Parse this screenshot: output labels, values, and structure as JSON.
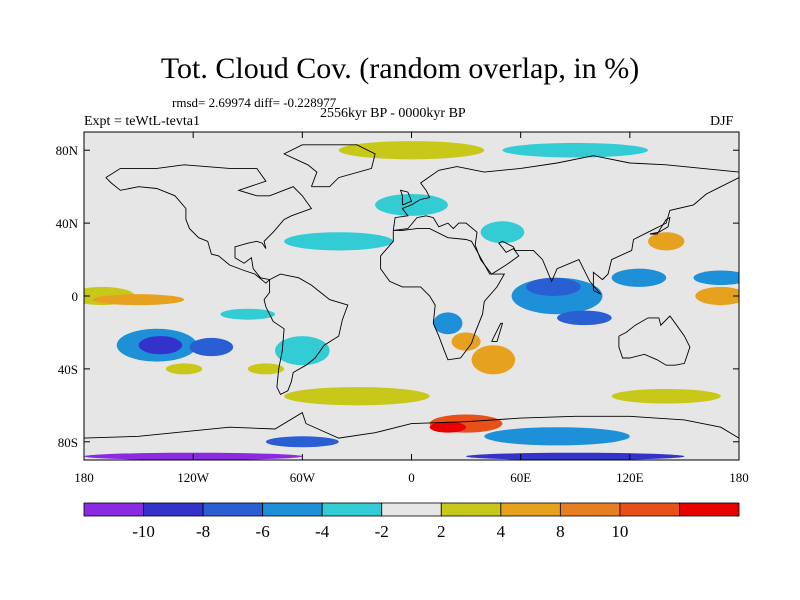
{
  "title": "Tot. Cloud Cov. (random overlap, in %)",
  "stats_line": "rmsd= 2.69974  diff= -0.228977",
  "period": "2556kyr BP - 0000kyr BP",
  "experiment": "Expt = teWtL-tevta1",
  "season": "DJF",
  "map": {
    "projection": "cylindrical-equidistant",
    "lon_range": [
      -180,
      180
    ],
    "lat_range": [
      -90,
      90
    ],
    "x_ticks": [
      {
        "lon": -180,
        "label": "180"
      },
      {
        "lon": -120,
        "label": "120W"
      },
      {
        "lon": -60,
        "label": "60W"
      },
      {
        "lon": 0,
        "label": "0"
      },
      {
        "lon": 60,
        "label": "60E"
      },
      {
        "lon": 120,
        "label": "120E"
      },
      {
        "lon": 180,
        "label": "180"
      }
    ],
    "y_ticks": [
      {
        "lat": 80,
        "label": "80N"
      },
      {
        "lat": 40,
        "label": "40N"
      },
      {
        "lat": 0,
        "label": "0"
      },
      {
        "lat": -40,
        "label": "40S"
      },
      {
        "lat": -80,
        "label": "80S"
      }
    ],
    "background_color": "#e6e6e6",
    "anomaly_patches": [
      {
        "lon": -170,
        "lat": 0,
        "rlon": 18,
        "rlat": 5,
        "bin": 6
      },
      {
        "lon": -150,
        "lat": -2,
        "rlon": 25,
        "rlat": 3,
        "bin": 7
      },
      {
        "lon": 170,
        "lat": 0,
        "rlon": 14,
        "rlat": 5,
        "bin": 7
      },
      {
        "lon": -140,
        "lat": -27,
        "rlon": 22,
        "rlat": 9,
        "bin": 3
      },
      {
        "lon": -138,
        "lat": -27,
        "rlon": 12,
        "rlat": 5,
        "bin": 1
      },
      {
        "lon": -110,
        "lat": -28,
        "rlon": 12,
        "rlat": 5,
        "bin": 2
      },
      {
        "lon": -60,
        "lat": -30,
        "rlon": 15,
        "rlat": 8,
        "bin": 4
      },
      {
        "lon": -90,
        "lat": -10,
        "rlon": 15,
        "rlat": 3,
        "bin": 4
      },
      {
        "lon": -38,
        "lat": -20,
        "rlon": 8,
        "rlat": 4,
        "bin": 5
      },
      {
        "lon": -125,
        "lat": -40,
        "rlon": 10,
        "rlat": 3,
        "bin": 6
      },
      {
        "lon": -80,
        "lat": -40,
        "rlon": 10,
        "rlat": 3,
        "bin": 6
      },
      {
        "lon": -160,
        "lat": 20,
        "rlon": 15,
        "rlat": 4,
        "bin": 5
      },
      {
        "lon": -40,
        "lat": 30,
        "rlon": 30,
        "rlat": 5,
        "bin": 4
      },
      {
        "lon": 0,
        "lat": 50,
        "rlon": 20,
        "rlat": 6,
        "bin": 4
      },
      {
        "lon": 80,
        "lat": 0,
        "rlon": 25,
        "rlat": 10,
        "bin": 3
      },
      {
        "lon": 78,
        "lat": 5,
        "rlon": 15,
        "rlat": 5,
        "bin": 2
      },
      {
        "lon": 95,
        "lat": -12,
        "rlon": 15,
        "rlat": 4,
        "bin": 2
      },
      {
        "lon": 125,
        "lat": 10,
        "rlon": 15,
        "rlat": 5,
        "bin": 3
      },
      {
        "lon": 170,
        "lat": 10,
        "rlon": 15,
        "rlat": 4,
        "bin": 3
      },
      {
        "lon": 45,
        "lat": -35,
        "rlon": 12,
        "rlat": 8,
        "bin": 7
      },
      {
        "lon": 30,
        "lat": -25,
        "rlon": 8,
        "rlat": 5,
        "bin": 7
      },
      {
        "lon": 20,
        "lat": -15,
        "rlon": 8,
        "rlat": 6,
        "bin": 3
      },
      {
        "lon": 50,
        "lat": 35,
        "rlon": 12,
        "rlat": 6,
        "bin": 4
      },
      {
        "lon": 60,
        "lat": 60,
        "rlon": 20,
        "rlat": 5,
        "bin": 5
      },
      {
        "lon": 0,
        "lat": 80,
        "rlon": 40,
        "rlat": 5,
        "bin": 6
      },
      {
        "lon": -60,
        "lat": 80,
        "rlon": 20,
        "rlat": 5,
        "bin": 5
      },
      {
        "lon": 90,
        "lat": 80,
        "rlon": 40,
        "rlat": 4,
        "bin": 4
      },
      {
        "lon": 120,
        "lat": 40,
        "rlon": 20,
        "rlat": 6,
        "bin": 5
      },
      {
        "lon": 140,
        "lat": 30,
        "rlon": 10,
        "rlat": 5,
        "bin": 7
      },
      {
        "lon": -120,
        "lat": 55,
        "rlon": 25,
        "rlat": 4,
        "bin": 5
      },
      {
        "lon": -30,
        "lat": -55,
        "rlon": 40,
        "rlat": 5,
        "bin": 6
      },
      {
        "lon": 140,
        "lat": -55,
        "rlon": 30,
        "rlat": 4,
        "bin": 6
      },
      {
        "lon": -140,
        "lat": -60,
        "rlon": 25,
        "rlat": 3,
        "bin": 5
      },
      {
        "lon": 30,
        "lat": -70,
        "rlon": 20,
        "rlat": 5,
        "bin": 9
      },
      {
        "lon": 20,
        "lat": -72,
        "rlon": 10,
        "rlat": 3,
        "bin": 10
      },
      {
        "lon": -140,
        "lat": -75,
        "rlon": 40,
        "rlat": 6,
        "bin": 5
      },
      {
        "lon": 80,
        "lat": -77,
        "rlon": 40,
        "rlat": 5,
        "bin": 3
      },
      {
        "lon": -60,
        "lat": -80,
        "rlon": 20,
        "rlat": 3,
        "bin": 2
      },
      {
        "lon": -120,
        "lat": -88,
        "rlon": 60,
        "rlat": 2,
        "bin": 0
      },
      {
        "lon": 90,
        "lat": -88,
        "rlon": 60,
        "rlat": 2,
        "bin": 1
      }
    ],
    "coastlines": [
      [
        [
          -168,
          65
        ],
        [
          -160,
          70
        ],
        [
          -140,
          70
        ],
        [
          -125,
          72
        ],
        [
          -100,
          70
        ],
        [
          -85,
          70
        ],
        [
          -80,
          63
        ],
        [
          -95,
          58
        ],
        [
          -85,
          55
        ],
        [
          -78,
          55
        ],
        [
          -65,
          60
        ],
        [
          -60,
          55
        ],
        [
          -55,
          48
        ],
        [
          -66,
          44
        ],
        [
          -70,
          42
        ],
        [
          -76,
          35
        ],
        [
          -81,
          30
        ],
        [
          -80,
          26
        ],
        [
          -82,
          29
        ],
        [
          -85,
          30
        ],
        [
          -90,
          29
        ],
        [
          -97,
          27
        ],
        [
          -97,
          21
        ],
        [
          -92,
          18
        ],
        [
          -88,
          21
        ],
        [
          -87,
          15
        ],
        [
          -83,
          10
        ],
        [
          -78,
          9
        ],
        [
          -80,
          7
        ],
        [
          -86,
          12
        ],
        [
          -92,
          14
        ],
        [
          -100,
          17
        ],
        [
          -106,
          22
        ],
        [
          -110,
          23
        ],
        [
          -112,
          30
        ],
        [
          -117,
          32
        ],
        [
          -122,
          37
        ],
        [
          -124,
          42
        ],
        [
          -124,
          48
        ],
        [
          -130,
          55
        ],
        [
          -140,
          59
        ],
        [
          -150,
          60
        ],
        [
          -160,
          58
        ],
        [
          -165,
          62
        ],
        [
          -168,
          65
        ]
      ],
      [
        [
          -78,
          9
        ],
        [
          -72,
          12
        ],
        [
          -62,
          10
        ],
        [
          -55,
          6
        ],
        [
          -50,
          2
        ],
        [
          -45,
          -2
        ],
        [
          -35,
          -5
        ],
        [
          -38,
          -13
        ],
        [
          -40,
          -22
        ],
        [
          -48,
          -27
        ],
        [
          -53,
          -34
        ],
        [
          -58,
          -38
        ],
        [
          -65,
          -42
        ],
        [
          -66,
          -47
        ],
        [
          -68,
          -52
        ],
        [
          -72,
          -54
        ],
        [
          -74,
          -50
        ],
        [
          -73,
          -40
        ],
        [
          -71,
          -30
        ],
        [
          -70,
          -18
        ],
        [
          -76,
          -14
        ],
        [
          -80,
          -6
        ],
        [
          -81,
          -2
        ],
        [
          -78,
          2
        ],
        [
          -78,
          9
        ]
      ],
      [
        [
          -10,
          36
        ],
        [
          -5,
          36
        ],
        [
          3,
          37
        ],
        [
          10,
          37
        ],
        [
          20,
          32
        ],
        [
          30,
          31
        ],
        [
          33,
          30
        ],
        [
          43,
          12
        ],
        [
          51,
          12
        ],
        [
          47,
          5
        ],
        [
          40,
          -3
        ],
        [
          39,
          -10
        ],
        [
          35,
          -20
        ],
        [
          33,
          -26
        ],
        [
          27,
          -34
        ],
        [
          20,
          -35
        ],
        [
          18,
          -30
        ],
        [
          15,
          -22
        ],
        [
          12,
          -15
        ],
        [
          13,
          -5
        ],
        [
          10,
          0
        ],
        [
          5,
          5
        ],
        [
          -5,
          5
        ],
        [
          -12,
          8
        ],
        [
          -17,
          15
        ],
        [
          -17,
          22
        ],
        [
          -10,
          30
        ],
        [
          -10,
          36
        ]
      ],
      [
        [
          -10,
          36
        ],
        [
          -9,
          43
        ],
        [
          -2,
          44
        ],
        [
          -5,
          48
        ],
        [
          0,
          50
        ],
        [
          5,
          53
        ],
        [
          10,
          54
        ],
        [
          8,
          58
        ],
        [
          5,
          62
        ],
        [
          15,
          69
        ],
        [
          25,
          71
        ],
        [
          40,
          68
        ],
        [
          60,
          70
        ],
        [
          80,
          73
        ],
        [
          100,
          77
        ],
        [
          120,
          73
        ],
        [
          140,
          72
        ],
        [
          160,
          70
        ],
        [
          180,
          68
        ],
        [
          180,
          65
        ],
        [
          170,
          60
        ],
        [
          162,
          56
        ],
        [
          155,
          50
        ],
        [
          142,
          47
        ],
        [
          140,
          40
        ],
        [
          130,
          35
        ],
        [
          122,
          31
        ],
        [
          121,
          25
        ],
        [
          110,
          20
        ],
        [
          108,
          12
        ],
        [
          105,
          9
        ],
        [
          100,
          13
        ],
        [
          100,
          3
        ],
        [
          104,
          1
        ],
        [
          98,
          8
        ],
        [
          92,
          20
        ],
        [
          80,
          15
        ],
        [
          77,
          8
        ],
        [
          72,
          20
        ],
        [
          67,
          25
        ],
        [
          57,
          25
        ],
        [
          56,
          27
        ],
        [
          50,
          30
        ],
        [
          48,
          29
        ],
        [
          52,
          24
        ],
        [
          56,
          26
        ],
        [
          59,
          22
        ],
        [
          52,
          17
        ],
        [
          44,
          12
        ],
        [
          38,
          20
        ],
        [
          35,
          28
        ],
        [
          36,
          35
        ],
        [
          30,
          40
        ],
        [
          26,
          40
        ],
        [
          23,
          37
        ],
        [
          20,
          40
        ],
        [
          15,
          38
        ],
        [
          12,
          43
        ],
        [
          8,
          44
        ],
        [
          3,
          43
        ],
        [
          -2,
          37
        ],
        [
          -10,
          36
        ]
      ],
      [
        [
          114,
          -22
        ],
        [
          118,
          -20
        ],
        [
          123,
          -16
        ],
        [
          130,
          -12
        ],
        [
          136,
          -12
        ],
        [
          137,
          -16
        ],
        [
          142,
          -11
        ],
        [
          145,
          -15
        ],
        [
          150,
          -22
        ],
        [
          153,
          -28
        ],
        [
          150,
          -37
        ],
        [
          145,
          -38
        ],
        [
          140,
          -38
        ],
        [
          135,
          -35
        ],
        [
          128,
          -32
        ],
        [
          120,
          -34
        ],
        [
          116,
          -34
        ],
        [
          114,
          -28
        ],
        [
          114,
          -22
        ]
      ],
      [
        [
          44,
          -25
        ],
        [
          49,
          -15
        ],
        [
          50,
          -15
        ],
        [
          47,
          -25
        ],
        [
          44,
          -25
        ]
      ],
      [
        [
          -55,
          60
        ],
        [
          -45,
          60
        ],
        [
          -40,
          65
        ],
        [
          -22,
          70
        ],
        [
          -20,
          78
        ],
        [
          -30,
          83
        ],
        [
          -60,
          83
        ],
        [
          -70,
          78
        ],
        [
          -57,
          72
        ],
        [
          -52,
          68
        ],
        [
          -55,
          60
        ]
      ],
      [
        [
          -180,
          -78
        ],
        [
          -150,
          -77
        ],
        [
          -120,
          -74
        ],
        [
          -100,
          -72
        ],
        [
          -75,
          -73
        ],
        [
          -60,
          -64
        ],
        [
          -58,
          -70
        ],
        [
          -40,
          -78
        ],
        [
          -20,
          -75
        ],
        [
          0,
          -70
        ],
        [
          30,
          -69
        ],
        [
          60,
          -67
        ],
        [
          90,
          -66
        ],
        [
          120,
          -66
        ],
        [
          150,
          -68
        ],
        [
          170,
          -72
        ],
        [
          180,
          -78
        ]
      ],
      [
        [
          -5,
          50
        ],
        [
          0,
          52
        ],
        [
          -2,
          57
        ],
        [
          -6,
          58
        ],
        [
          -5,
          55
        ],
        [
          -5,
          50
        ]
      ],
      [
        [
          131,
          34
        ],
        [
          136,
          35
        ],
        [
          141,
          38
        ],
        [
          142,
          43
        ],
        [
          140,
          42
        ],
        [
          135,
          34
        ],
        [
          131,
          34
        ]
      ]
    ]
  },
  "colorbar": {
    "colors": [
      "#8a2be2",
      "#3333cc",
      "#2a5fd4",
      "#1e90d8",
      "#33ccd4",
      "#e6e6e6",
      "#c8c81a",
      "#e6a21e",
      "#e67e22",
      "#e8501a",
      "#e60000"
    ],
    "labels": [
      "-10",
      "-8",
      "-6",
      "-4",
      "-2",
      "2",
      "4",
      "8",
      "10"
    ]
  }
}
